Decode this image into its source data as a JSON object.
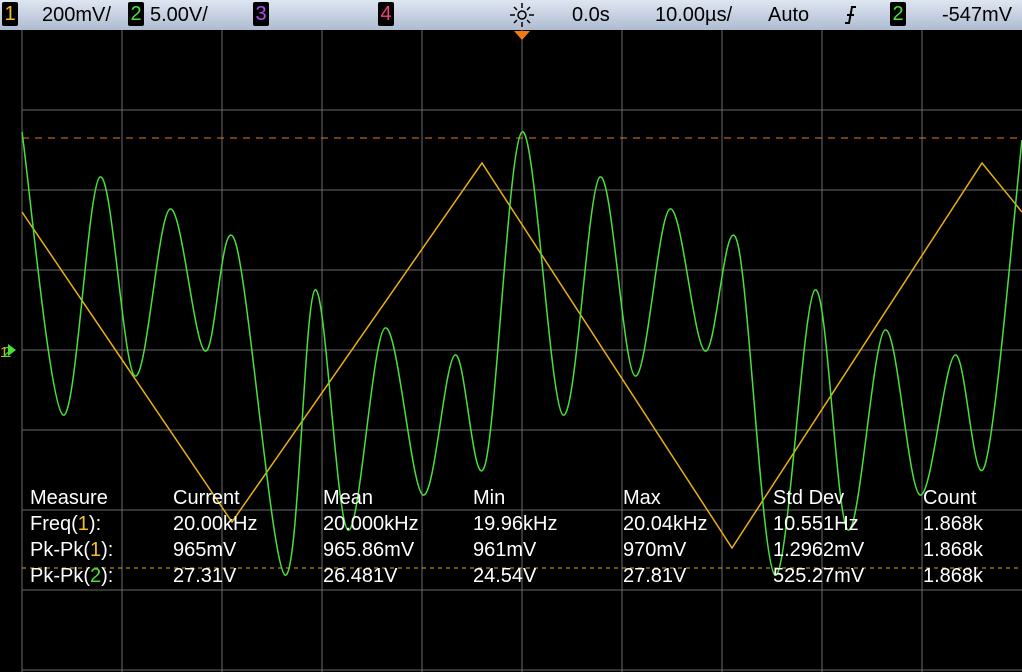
{
  "top_bar": {
    "ch1": {
      "number": "1",
      "scale": "200mV/"
    },
    "ch2": {
      "number": "2",
      "scale": "5.00V/"
    },
    "ch3": {
      "number": "3"
    },
    "ch4": {
      "number": "4"
    },
    "time_offset": "0.0s",
    "time_scale": "10.00µs/",
    "trigger_mode": "Auto",
    "trigger_source": "2",
    "trigger_level": "-547mV"
  },
  "ground_markers": {
    "ch1": "1",
    "ch2": "2"
  },
  "measurements": {
    "columns": [
      "Measure",
      "Current",
      "Mean",
      "Min",
      "Max",
      "Std Dev",
      "Count"
    ],
    "rows": [
      {
        "name": "Freq(",
        "channel": "1",
        "close": "):",
        "cells": [
          "20.00kHz",
          "20.000kHz",
          "19.96kHz",
          "20.04kHz",
          "10.551Hz",
          "1.868k"
        ]
      },
      {
        "name": "Pk-Pk(",
        "channel": "1",
        "close": "):",
        "cells": [
          "965mV",
          "965.86mV",
          "961mV",
          "970mV",
          "1.2962mV",
          "1.868k"
        ]
      },
      {
        "name": "Pk-Pk(",
        "channel": "2",
        "close": "):",
        "cells": [
          "27.31V",
          "26.481V",
          "24.54V",
          "27.81V",
          "525.27mV",
          "1.868k"
        ]
      }
    ]
  }
}
